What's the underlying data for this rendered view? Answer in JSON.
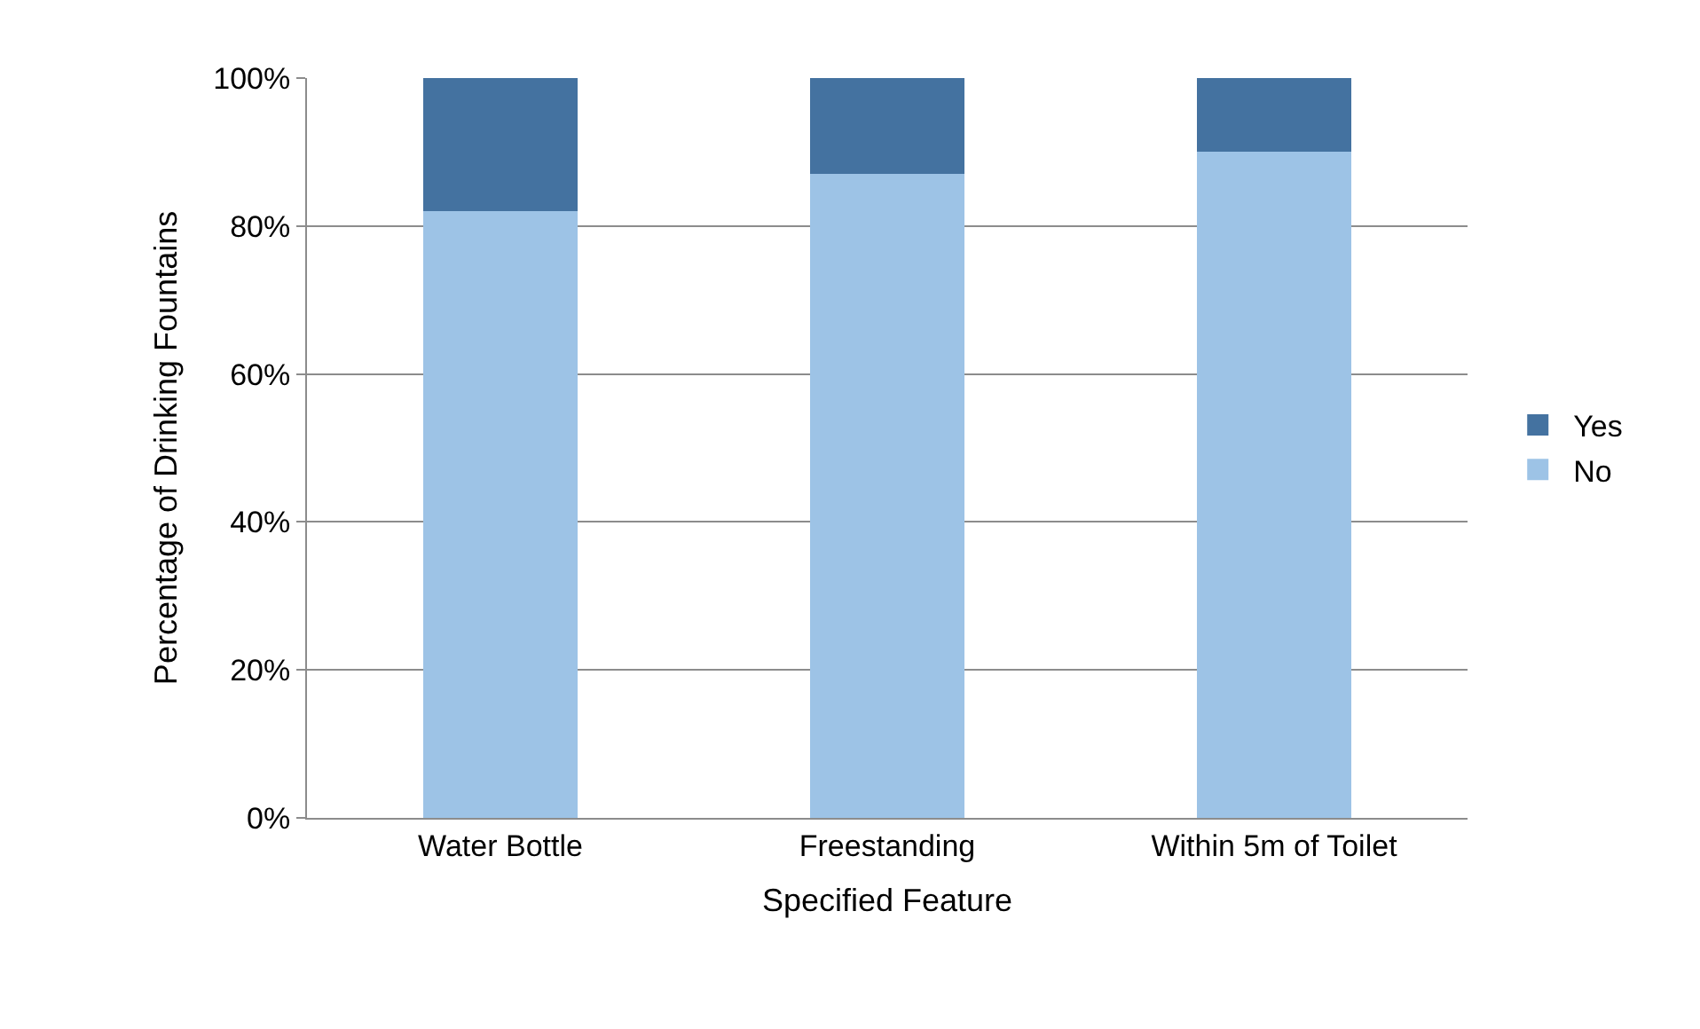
{
  "chart_data": {
    "type": "bar",
    "stacked": true,
    "xlabel": "Specified Feature",
    "ylabel": "Percentage of Drinking Fountains",
    "categories": [
      "Water Bottle",
      "Freestanding",
      "Within 5m of Toilet"
    ],
    "series": [
      {
        "name": "No",
        "color": "#9dc3e6",
        "values": [
          82,
          87,
          90
        ]
      },
      {
        "name": "Yes",
        "color": "#4472a0",
        "values": [
          18,
          13,
          10
        ]
      }
    ],
    "ylim": [
      0,
      100
    ],
    "yticks": [
      {
        "value": 0,
        "label": "0%"
      },
      {
        "value": 20,
        "label": "20%"
      },
      {
        "value": 40,
        "label": "40%"
      },
      {
        "value": 60,
        "label": "60%"
      },
      {
        "value": 80,
        "label": "80%"
      },
      {
        "value": 100,
        "label": "100%"
      }
    ],
    "grid": "y",
    "legend": "right"
  }
}
